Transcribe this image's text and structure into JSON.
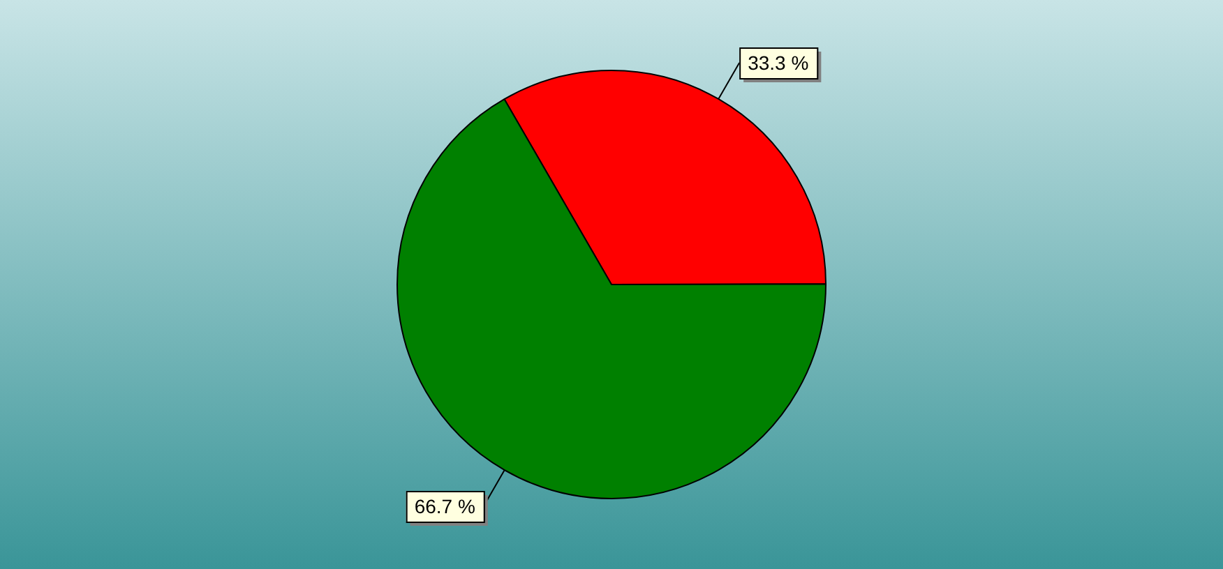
{
  "chart_data": {
    "type": "pie",
    "categories": [
      null,
      null
    ],
    "values": [
      33.3,
      66.7
    ],
    "colors": [
      "#ff0000",
      "#008000"
    ],
    "value_labels": [
      "33.3 %",
      "66.7 %"
    ],
    "legend": false
  }
}
